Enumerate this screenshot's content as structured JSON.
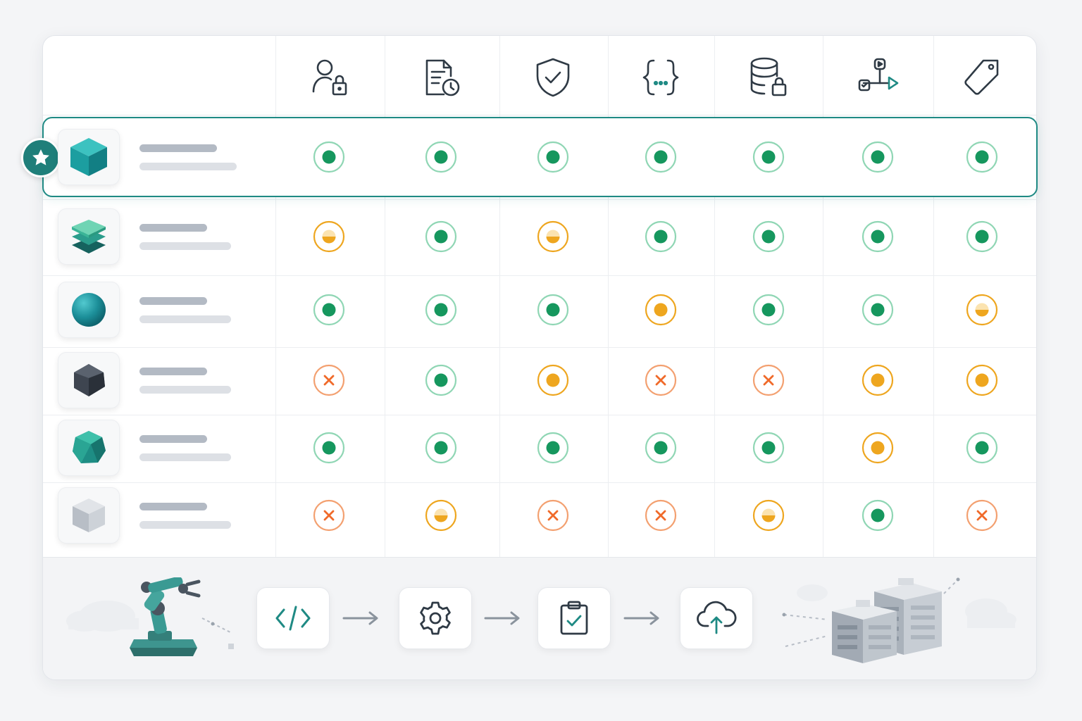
{
  "columns": [
    {
      "icon": "user-lock-icon"
    },
    {
      "icon": "document-clock-icon"
    },
    {
      "icon": "shield-check-icon"
    },
    {
      "icon": "code-braces-icon"
    },
    {
      "icon": "database-lock-icon"
    },
    {
      "icon": "pipeline-play-icon"
    },
    {
      "icon": "tag-icon"
    }
  ],
  "rows": [
    {
      "icon": "teal-cube-icon",
      "featured": true,
      "statuses": [
        "full",
        "full",
        "full",
        "full",
        "full",
        "full",
        "full"
      ]
    },
    {
      "icon": "green-layers-icon",
      "featured": false,
      "statuses": [
        "half",
        "full",
        "half",
        "full",
        "full",
        "full",
        "full"
      ]
    },
    {
      "icon": "teal-sphere-icon",
      "featured": false,
      "statuses": [
        "full",
        "full",
        "full",
        "partial",
        "full",
        "full",
        "half"
      ]
    },
    {
      "icon": "dark-gem-icon",
      "featured": false,
      "statuses": [
        "none",
        "full",
        "partial",
        "none",
        "none",
        "partial",
        "partial"
      ]
    },
    {
      "icon": "green-polyhedron-icon",
      "featured": false,
      "statuses": [
        "full",
        "full",
        "full",
        "full",
        "full",
        "partial",
        "full"
      ]
    },
    {
      "icon": "gray-cube-icon",
      "featured": false,
      "statuses": [
        "none",
        "half",
        "none",
        "none",
        "half",
        "full",
        "none"
      ]
    }
  ],
  "pipeline": [
    {
      "icon": "code-icon"
    },
    {
      "icon": "gear-icon"
    },
    {
      "icon": "clipboard-check-icon"
    },
    {
      "icon": "cloud-upload-icon"
    }
  ],
  "colors": {
    "accent": "#1f8a84",
    "full": "#16975e",
    "partial": "#eea61f",
    "none": "#f06a2a"
  }
}
